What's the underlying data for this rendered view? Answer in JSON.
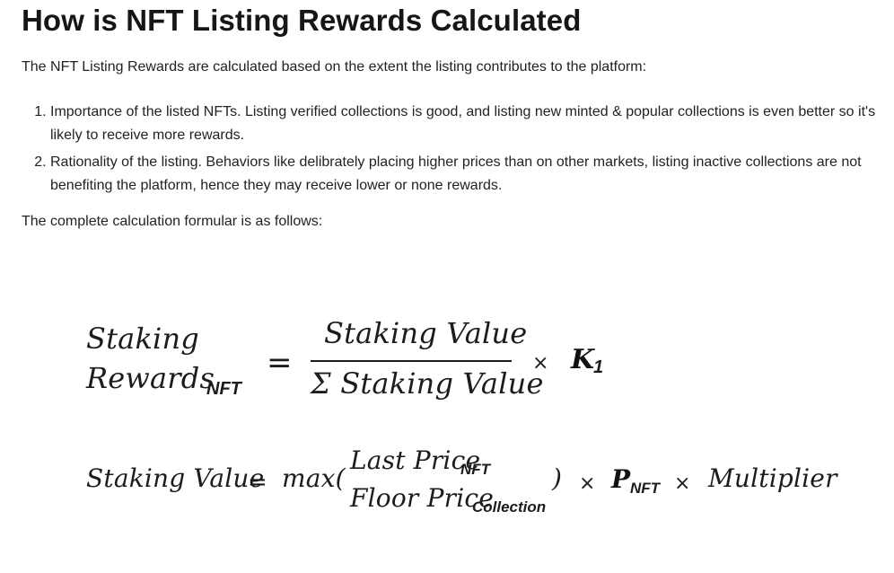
{
  "heading": "How is NFT Listing Rewards Calculated",
  "intro": "The NFT Listing Rewards are calculated based on the extent the listing contributes to the platform:",
  "reasons": [
    "Importance of the listed NFTs. Listing verified collections is good, and listing new minted & popular collections is even better so it's likely to receive more rewards.",
    "Rationality of the listing. Behaviors like delibrately placing higher prices than on other markets, listing inactive collections are not benefiting the platform, hence they may receive lower or none rewards."
  ],
  "outro": "The complete calculation formular is as follows:",
  "formula1": {
    "lhs_line1": "Staking",
    "lhs_line2": "Rewards",
    "lhs_sub": "NFT",
    "equals": "=",
    "numerator": "Staking Value",
    "denominator": "Σ Staking Value",
    "times": "×",
    "k_symbol": "K",
    "k_sub": "1"
  },
  "formula2": {
    "lhs": "Staking Value",
    "equals": "=",
    "max_open": "max(",
    "numerator": "Last Price",
    "numerator_sub": "NFT",
    "denominator": "Floor Price",
    "denominator_sub": "Collection",
    "max_close": ")",
    "times1": "×",
    "p_symbol": "P",
    "p_sub": "NFT",
    "times2": "×",
    "multiplier": "Multiplier"
  }
}
